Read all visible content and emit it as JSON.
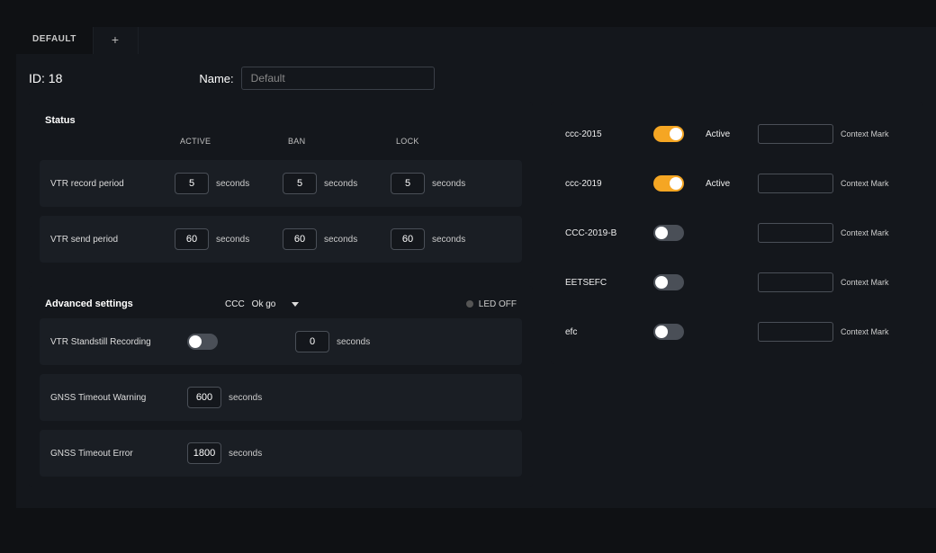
{
  "tabs": {
    "default": "DEFAULT",
    "add": "+"
  },
  "id_label": "ID: 18",
  "name_label": "Name:",
  "name_value": "Default",
  "status": {
    "title": "Status",
    "headers": {
      "active": "ACTIVE",
      "ban": "BAN",
      "lock": "LOCK"
    },
    "unit": "seconds",
    "rows": [
      {
        "label": "VTR record period",
        "active": "5",
        "ban": "5",
        "lock": "5"
      },
      {
        "label": "VTR send period",
        "active": "60",
        "ban": "60",
        "lock": "60"
      }
    ]
  },
  "advanced": {
    "title": "Advanced settings",
    "ccc_label": "CCC",
    "ccc_value": "Ok go",
    "led_label": "LED OFF",
    "unit": "seconds",
    "rows": {
      "standstill": {
        "label": "VTR Standstill Recording",
        "toggle": false,
        "value": "0"
      },
      "gnss_warn": {
        "label": "GNSS Timeout Warning",
        "value": "600"
      },
      "gnss_err": {
        "label": "GNSS Timeout Error",
        "value": "1800"
      }
    }
  },
  "services": {
    "context_label": "Context Mark",
    "active_label": "Active",
    "items": [
      {
        "name": "ccc-2015",
        "on": true
      },
      {
        "name": "ccc-2019",
        "on": true
      },
      {
        "name": "CCC-2019-B",
        "on": false
      },
      {
        "name": "EETSEFC",
        "on": false
      },
      {
        "name": "efc",
        "on": false
      }
    ]
  },
  "colors": {
    "bg": "#0f1114",
    "panel": "#14171c",
    "row": "#1a1e24",
    "border": "#4a4f57",
    "accent": "#f5a623",
    "text": "#e8e8e8"
  }
}
